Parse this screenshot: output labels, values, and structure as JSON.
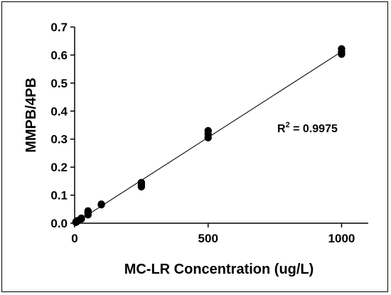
{
  "chart_data": {
    "type": "scatter",
    "xlabel": "MC-LR Concentration (ug/L)",
    "ylabel": "MMPB/4PB",
    "xlim": [
      0,
      1100
    ],
    "ylim": [
      0,
      0.7
    ],
    "x_ticks": [
      0,
      500,
      1000
    ],
    "x_tick_labels": [
      "0",
      "500",
      "1000"
    ],
    "y_ticks": [
      0.0,
      0.1,
      0.2,
      0.3,
      0.4,
      0.5,
      0.6,
      0.7
    ],
    "y_tick_labels": [
      "0.0",
      "0.1",
      "0.2",
      "0.3",
      "0.4",
      "0.5",
      "0.6",
      "0.7"
    ],
    "grid": false,
    "annotation": {
      "base": "R",
      "sup": "2",
      "text": " = 0.9975"
    },
    "points": [
      {
        "x": 5,
        "y": 0.003
      },
      {
        "x": 5,
        "y": 0.005
      },
      {
        "x": 5,
        "y": 0.004
      },
      {
        "x": 10,
        "y": 0.007
      },
      {
        "x": 10,
        "y": 0.009
      },
      {
        "x": 10,
        "y": 0.008
      },
      {
        "x": 25,
        "y": 0.015
      },
      {
        "x": 25,
        "y": 0.018
      },
      {
        "x": 25,
        "y": 0.016
      },
      {
        "x": 50,
        "y": 0.03
      },
      {
        "x": 50,
        "y": 0.038
      },
      {
        "x": 50,
        "y": 0.044
      },
      {
        "x": 100,
        "y": 0.066
      },
      {
        "x": 100,
        "y": 0.068
      },
      {
        "x": 250,
        "y": 0.13
      },
      {
        "x": 250,
        "y": 0.138
      },
      {
        "x": 250,
        "y": 0.145
      },
      {
        "x": 500,
        "y": 0.305
      },
      {
        "x": 500,
        "y": 0.318
      },
      {
        "x": 500,
        "y": 0.33
      },
      {
        "x": 1000,
        "y": 0.603
      },
      {
        "x": 1000,
        "y": 0.612
      },
      {
        "x": 1000,
        "y": 0.622
      }
    ],
    "fit_line": {
      "x": [
        0,
        1000
      ],
      "y": [
        0.0,
        0.612
      ]
    }
  }
}
